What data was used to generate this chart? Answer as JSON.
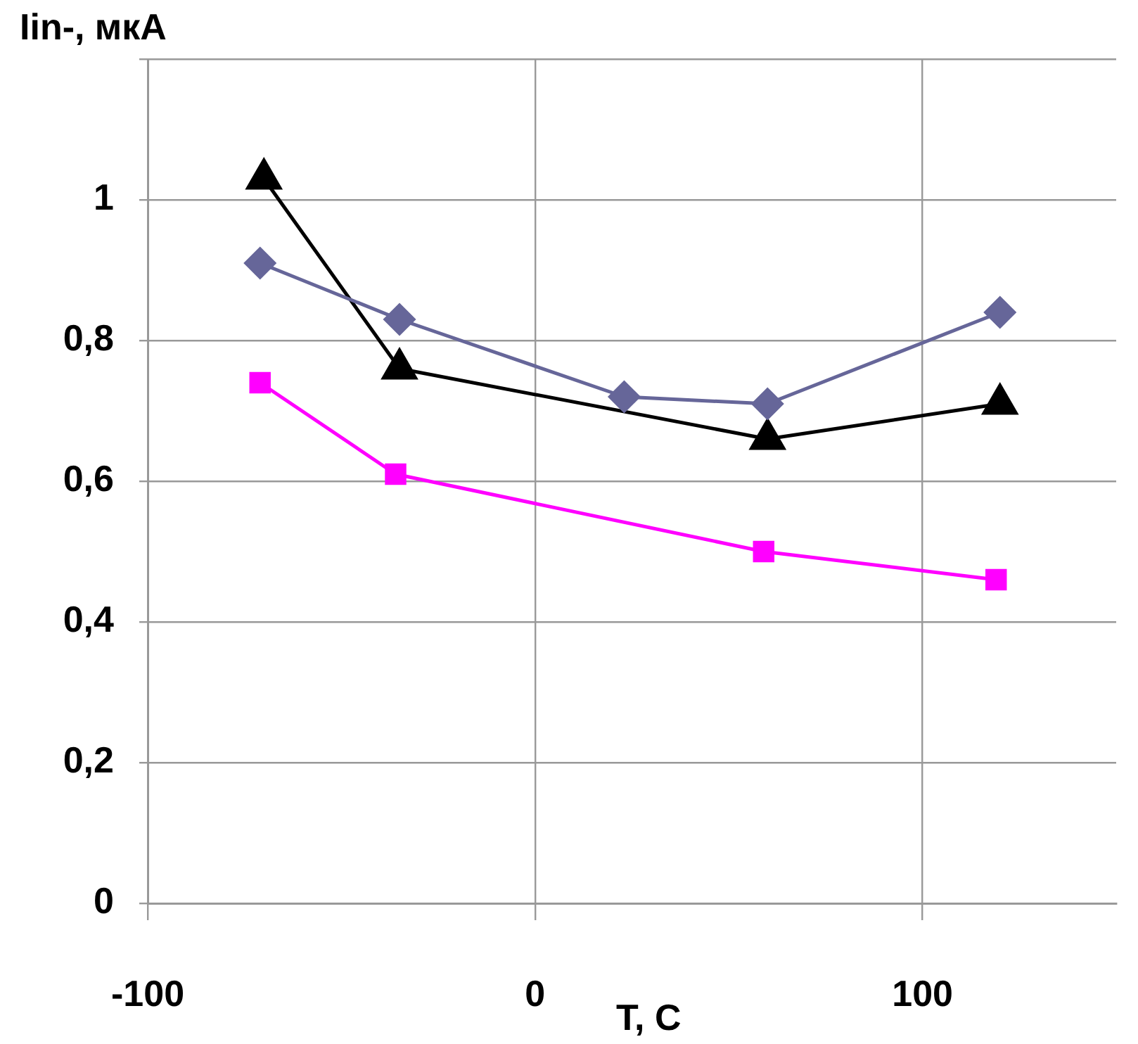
{
  "chart_data": {
    "type": "line",
    "ylabel": "Iin-, мкА",
    "xlabel": "T, C",
    "xlim": [
      -100,
      150
    ],
    "xticks": [
      -100,
      0,
      100
    ],
    "ylim": [
      0,
      1.2
    ],
    "yticks": [
      {
        "value": 0,
        "label": "0"
      },
      {
        "value": 0.2,
        "label": "0,2"
      },
      {
        "value": 0.4,
        "label": "0,4"
      },
      {
        "value": 0.6,
        "label": "0,6"
      },
      {
        "value": 0.8,
        "label": "0,8"
      },
      {
        "value": 1,
        "label": "1"
      },
      {
        "value": 1.2,
        "label": null
      }
    ],
    "grid": true,
    "legend": false,
    "series": [
      {
        "color": "#666699",
        "marker": "diamond",
        "x": [
          -71,
          -35,
          23,
          60,
          120
        ],
        "values": [
          0.91,
          0.83,
          0.72,
          0.71,
          0.84
        ]
      },
      {
        "color": "#000000",
        "marker": "triangle",
        "x": [
          -70,
          -35,
          60,
          120
        ],
        "values": [
          1.03,
          0.76,
          0.66,
          0.71
        ]
      },
      {
        "color": "#ff00ff",
        "marker": "square",
        "x": [
          -71,
          -36,
          59,
          119
        ],
        "values": [
          0.74,
          0.61,
          0.5,
          0.46
        ]
      }
    ]
  }
}
